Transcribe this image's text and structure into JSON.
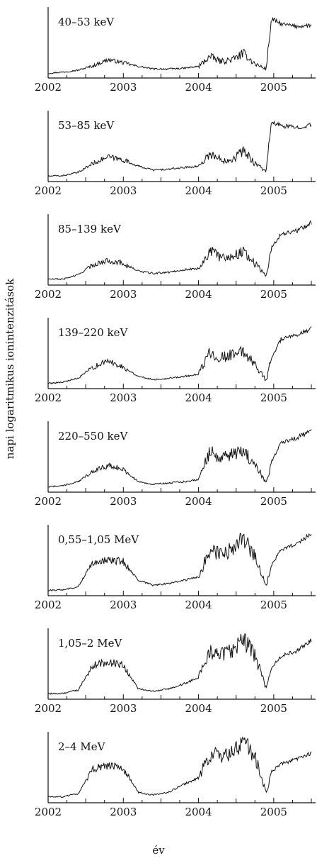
{
  "figure": {
    "ylabel": "napi logaritmikus ionintenzitások",
    "xlabel": "év"
  },
  "colors": {
    "line": "#111111",
    "axis": "#111111",
    "background": "#ffffff"
  },
  "chart_data": [
    {
      "type": "line",
      "title": "40–53 keV",
      "x_ticks": [
        "2002",
        "2003",
        "2004",
        "2005"
      ],
      "xlim": [
        2002.0,
        2005.5
      ],
      "x": [
        2002.0,
        2002.2,
        2002.4,
        2002.6,
        2002.8,
        2003.0,
        2003.2,
        2003.4,
        2003.6,
        2003.8,
        2004.0,
        2004.15,
        2004.3,
        2004.45,
        2004.6,
        2004.75,
        2004.9,
        2004.97,
        2005.1,
        2005.3,
        2005.5
      ],
      "y": [
        0.03,
        0.05,
        0.08,
        0.15,
        0.25,
        0.2,
        0.14,
        0.1,
        0.1,
        0.11,
        0.14,
        0.3,
        0.22,
        0.25,
        0.35,
        0.18,
        0.1,
        0.9,
        0.82,
        0.78,
        0.8
      ]
    },
    {
      "type": "line",
      "title": "53–85 keV",
      "x_ticks": [
        "2002",
        "2003",
        "2004",
        "2005"
      ],
      "xlim": [
        2002.0,
        2005.5
      ],
      "x": [
        2002.0,
        2002.2,
        2002.4,
        2002.6,
        2002.8,
        2003.0,
        2003.2,
        2003.4,
        2003.6,
        2003.8,
        2004.0,
        2004.15,
        2004.3,
        2004.45,
        2004.6,
        2004.75,
        2004.9,
        2004.97,
        2005.1,
        2005.3,
        2005.5
      ],
      "y": [
        0.04,
        0.05,
        0.1,
        0.25,
        0.35,
        0.3,
        0.2,
        0.14,
        0.15,
        0.18,
        0.2,
        0.4,
        0.3,
        0.32,
        0.45,
        0.25,
        0.12,
        0.9,
        0.85,
        0.82,
        0.86
      ]
    },
    {
      "type": "line",
      "title": "85–139 keV",
      "x_ticks": [
        "2002",
        "2003",
        "2004",
        "2005"
      ],
      "xlim": [
        2002.0,
        2005.5
      ],
      "x": [
        2002.0,
        2002.2,
        2002.4,
        2002.6,
        2002.8,
        2003.0,
        2003.2,
        2003.4,
        2003.6,
        2003.8,
        2004.0,
        2004.15,
        2004.3,
        2004.45,
        2004.6,
        2004.75,
        2004.9,
        2004.97,
        2005.1,
        2005.3,
        2005.5
      ],
      "y": [
        0.05,
        0.05,
        0.12,
        0.28,
        0.35,
        0.3,
        0.18,
        0.14,
        0.16,
        0.2,
        0.22,
        0.5,
        0.4,
        0.42,
        0.5,
        0.3,
        0.1,
        0.55,
        0.78,
        0.82,
        0.95
      ]
    },
    {
      "type": "line",
      "title": "139–220 keV",
      "x_ticks": [
        "2002",
        "2003",
        "2004",
        "2005"
      ],
      "xlim": [
        2002.0,
        2005.5
      ],
      "x": [
        2002.0,
        2002.2,
        2002.4,
        2002.6,
        2002.8,
        2003.0,
        2003.2,
        2003.4,
        2003.6,
        2003.8,
        2004.0,
        2004.15,
        2004.3,
        2004.45,
        2004.6,
        2004.75,
        2004.9,
        2004.97,
        2005.1,
        2005.3,
        2005.5
      ],
      "y": [
        0.04,
        0.06,
        0.12,
        0.3,
        0.4,
        0.3,
        0.15,
        0.1,
        0.12,
        0.15,
        0.18,
        0.55,
        0.45,
        0.5,
        0.55,
        0.35,
        0.08,
        0.45,
        0.75,
        0.8,
        0.92
      ]
    },
    {
      "type": "line",
      "title": "220–550 keV",
      "x_ticks": [
        "2002",
        "2003",
        "2004",
        "2005"
      ],
      "xlim": [
        2002.0,
        2005.5
      ],
      "x": [
        2002.0,
        2002.2,
        2002.4,
        2002.6,
        2002.8,
        2003.0,
        2003.2,
        2003.4,
        2003.6,
        2003.8,
        2004.0,
        2004.15,
        2004.3,
        2004.45,
        2004.6,
        2004.75,
        2004.9,
        2004.97,
        2005.1,
        2005.3,
        2005.5
      ],
      "y": [
        0.04,
        0.06,
        0.12,
        0.3,
        0.38,
        0.32,
        0.12,
        0.08,
        0.1,
        0.12,
        0.16,
        0.6,
        0.5,
        0.55,
        0.6,
        0.4,
        0.1,
        0.45,
        0.75,
        0.82,
        0.95
      ]
    },
    {
      "type": "line",
      "title": "0,55–1,05 MeV",
      "x_ticks": [
        "2002",
        "2003",
        "2004",
        "2005"
      ],
      "xlim": [
        2002.0,
        2005.5
      ],
      "x": [
        2002.0,
        2002.2,
        2002.4,
        2002.6,
        2002.8,
        2003.0,
        2003.2,
        2003.4,
        2003.6,
        2003.8,
        2004.0,
        2004.15,
        2004.3,
        2004.45,
        2004.6,
        2004.75,
        2004.9,
        2004.97,
        2005.1,
        2005.3,
        2005.5
      ],
      "y": [
        0.04,
        0.05,
        0.1,
        0.5,
        0.52,
        0.5,
        0.2,
        0.12,
        0.15,
        0.2,
        0.25,
        0.7,
        0.6,
        0.7,
        0.85,
        0.6,
        0.1,
        0.45,
        0.7,
        0.78,
        0.95
      ]
    },
    {
      "type": "line",
      "title": "1,05–2 MeV",
      "x_ticks": [
        "2002",
        "2003",
        "2004",
        "2005"
      ],
      "xlim": [
        2002.0,
        2005.5
      ],
      "x": [
        2002.0,
        2002.2,
        2002.4,
        2002.6,
        2002.8,
        2003.0,
        2003.2,
        2003.4,
        2003.6,
        2003.8,
        2004.0,
        2004.15,
        2004.3,
        2004.45,
        2004.6,
        2004.75,
        2004.9,
        2004.97,
        2005.1,
        2005.3,
        2005.5
      ],
      "y": [
        0.04,
        0.05,
        0.1,
        0.5,
        0.55,
        0.5,
        0.12,
        0.08,
        0.12,
        0.2,
        0.3,
        0.75,
        0.65,
        0.75,
        0.92,
        0.65,
        0.12,
        0.45,
        0.65,
        0.72,
        0.9
      ]
    },
    {
      "type": "line",
      "title": "2–4 MeV",
      "x_ticks": [
        "2002",
        "2003",
        "2004",
        "2005"
      ],
      "xlim": [
        2002.0,
        2005.5
      ],
      "x": [
        2002.0,
        2002.2,
        2002.4,
        2002.6,
        2002.8,
        2003.0,
        2003.2,
        2003.4,
        2003.6,
        2003.8,
        2004.0,
        2004.15,
        2004.3,
        2004.45,
        2004.6,
        2004.75,
        2004.9,
        2004.97,
        2005.1,
        2005.3,
        2005.5
      ],
      "y": [
        0.05,
        0.05,
        0.1,
        0.5,
        0.55,
        0.5,
        0.12,
        0.08,
        0.12,
        0.25,
        0.35,
        0.75,
        0.7,
        0.75,
        0.95,
        0.7,
        0.1,
        0.45,
        0.58,
        0.65,
        0.75
      ]
    }
  ]
}
